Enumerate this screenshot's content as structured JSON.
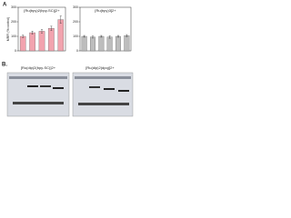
{
  "panel_labels": [
    "A",
    "B."
  ],
  "chart_data": [
    {
      "type": "bar",
      "title": "[Ru(bpy)2(bpy-SC)]2+",
      "y_label": "MRFI (% control)",
      "categories": [
        null,
        null,
        null,
        null,
        null
      ],
      "values": [
        100,
        125,
        135,
        155,
        215
      ],
      "errors": [
        8,
        10,
        12,
        15,
        25
      ],
      "color": "#f2a3ae",
      "ylim": [
        0,
        300
      ],
      "yticks": [
        0,
        100,
        200,
        300
      ]
    },
    {
      "type": "bar",
      "title": "[Ru(bpy)3]2+",
      "categories": [
        null,
        null,
        null,
        null,
        null,
        null
      ],
      "values": [
        100,
        95,
        100,
        95,
        100,
        105
      ],
      "errors": [
        6,
        7,
        6,
        8,
        6,
        7
      ],
      "color": "#bdbdbd",
      "ylim": [
        0,
        300
      ],
      "yticks": [
        0,
        100,
        200,
        300
      ]
    }
  ],
  "gels": [
    {
      "title": "[Ru(dip)2(bpy-SC)]2+"
    },
    {
      "title": "[Ru(dip)2(dpq)]2+"
    }
  ]
}
